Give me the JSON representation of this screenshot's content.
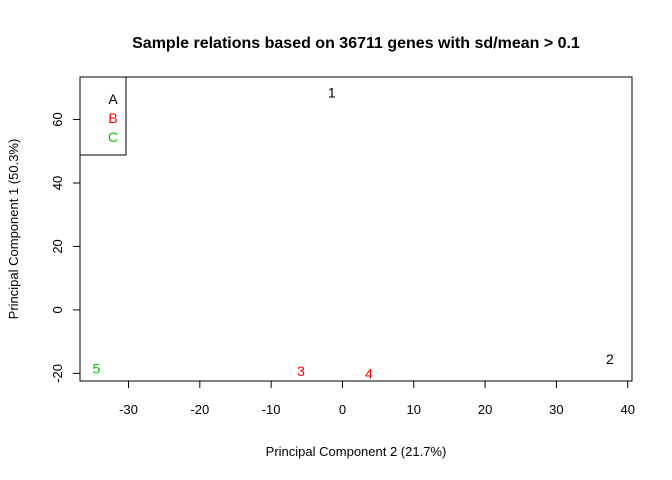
{
  "chart_data": {
    "type": "scatter",
    "title": "Sample relations based on 36711 genes with sd/mean > 0.1",
    "xlabel": "Principal Component 2 (21.7%)",
    "ylabel": "Principal Component 1 (50.3%)",
    "xlim": [
      -36.8,
      40.6
    ],
    "ylim": [
      -22.4,
      73.4
    ],
    "xticks": [
      -30,
      -20,
      -10,
      0,
      10,
      20,
      30,
      40
    ],
    "yticks": [
      -20,
      0,
      20,
      40,
      60
    ],
    "grid": false,
    "legend": {
      "placement": "top-left",
      "entries": [
        {
          "label": "A",
          "color": "#000000"
        },
        {
          "label": "B",
          "color": "#ff0000"
        },
        {
          "label": "C",
          "color": "#00cd00"
        }
      ]
    },
    "points": [
      {
        "label": "1",
        "x": -1.5,
        "y": 68.5,
        "group": "A"
      },
      {
        "label": "2",
        "x": 37.5,
        "y": -15.5,
        "group": "A"
      },
      {
        "label": "3",
        "x": -5.8,
        "y": -19.3,
        "group": "B"
      },
      {
        "label": "4",
        "x": 3.7,
        "y": -20.0,
        "group": "B"
      },
      {
        "label": "5",
        "x": -34.5,
        "y": -18.5,
        "group": "C"
      }
    ]
  }
}
